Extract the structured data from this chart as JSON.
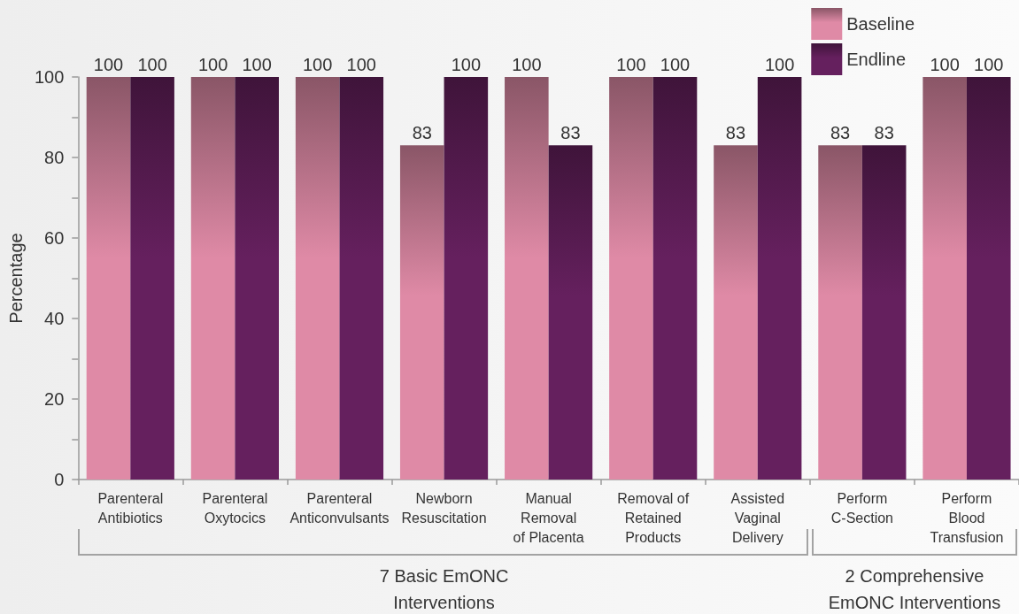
{
  "chart_data": {
    "type": "bar",
    "categories": [
      "Parenteral Antibiotics",
      "Parenteral Oxytocics",
      "Parenteral Anticonvulsants",
      "Newborn Resuscitation",
      "Manual Removal of Placenta",
      "Removal of Retained Products",
      "Assisted Vaginal Delivery",
      "Perform C-Section",
      "Perform Blood Transfusion"
    ],
    "series": [
      {
        "name": "Baseline",
        "color": "#df8aa6",
        "values": [
          100,
          100,
          100,
          83,
          100,
          100,
          83,
          83,
          100
        ]
      },
      {
        "name": "Endline",
        "color": "#65205e",
        "values": [
          100,
          100,
          100,
          100,
          83,
          100,
          100,
          83,
          100
        ]
      }
    ],
    "ylabel": "Percentage",
    "ylim": [
      0,
      100
    ],
    "yticks": [
      0,
      {
        "value": 10,
        "label": null
      },
      20,
      {
        "value": 30,
        "label": null
      },
      40,
      {
        "value": 50,
        "label": null
      },
      60,
      {
        "value": 70,
        "label": null
      },
      80,
      {
        "value": 90,
        "label": null
      },
      100
    ],
    "data_labels": true,
    "legend": "top right",
    "annotations": [
      "7 Basic EmONC Interventions",
      "2 Comprehensive EmONC Interventions"
    ]
  }
}
